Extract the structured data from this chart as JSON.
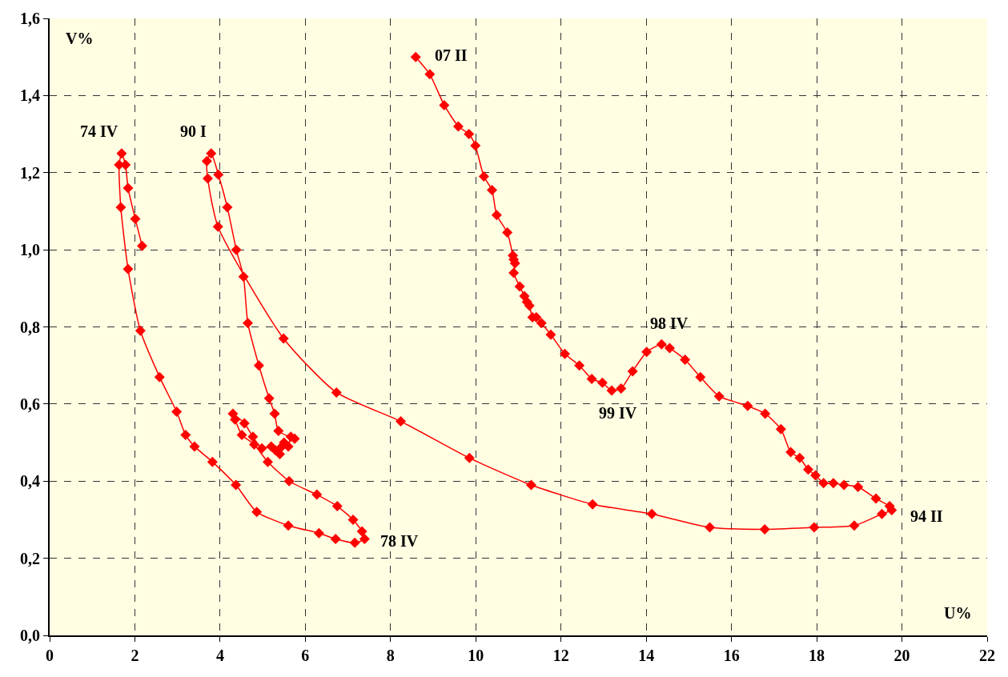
{
  "chart_data": {
    "type": "line",
    "xlabel": "U%",
    "ylabel": "V%",
    "series": [
      {
        "color": "#ff0000",
        "x": [
          2.17,
          2.01,
          1.84,
          1.78,
          1.69,
          1.63,
          1.67,
          1.84,
          2.13,
          2.58,
          2.98,
          3.19,
          3.4,
          3.82,
          4.37,
          4.86,
          5.6,
          6.32,
          6.71,
          7.16,
          7.39,
          7.33,
          7.12,
          6.75,
          6.27,
          5.62,
          5.12,
          4.8,
          4.51,
          4.35,
          4.3,
          4.57,
          4.77,
          4.98,
          5.2,
          5.3,
          5.4,
          5.45,
          5.5,
          5.6,
          5.66,
          5.75,
          5.37,
          5.28,
          5.15,
          4.91,
          4.65,
          4.55,
          4.38,
          4.17,
          3.96,
          3.79,
          3.69,
          3.71,
          3.95,
          5.49,
          6.73,
          8.24,
          9.85,
          11.3,
          12.74,
          14.13,
          15.49,
          16.78,
          17.94,
          18.88,
          19.53,
          19.76,
          19.71,
          19.39,
          18.97,
          18.64,
          18.39,
          18.16,
          17.97,
          17.8,
          17.6,
          17.39,
          17.16,
          16.79,
          16.38,
          15.71,
          15.27,
          14.91,
          14.55,
          14.36,
          14.01,
          13.68,
          13.41,
          13.19,
          12.97,
          12.72,
          12.43,
          12.09,
          11.76,
          11.54,
          11.42,
          11.33,
          11.26,
          11.2,
          11.14,
          11.03,
          10.89,
          10.92,
          10.89,
          10.87,
          10.74,
          10.49,
          10.38,
          10.19,
          9.99,
          9.84,
          9.59,
          9.26,
          8.92,
          8.59
        ],
        "values": [
          1.01,
          1.08,
          1.16,
          1.22,
          1.25,
          1.22,
          1.11,
          0.95,
          0.79,
          0.67,
          0.58,
          0.52,
          0.49,
          0.45,
          0.39,
          0.32,
          0.285,
          0.265,
          0.25,
          0.24,
          0.25,
          0.27,
          0.3,
          0.335,
          0.365,
          0.4,
          0.45,
          0.495,
          0.52,
          0.56,
          0.575,
          0.55,
          0.515,
          0.485,
          0.49,
          0.48,
          0.47,
          0.49,
          0.5,
          0.49,
          0.515,
          0.51,
          0.53,
          0.575,
          0.615,
          0.7,
          0.81,
          0.93,
          1.0,
          1.11,
          1.195,
          1.25,
          1.23,
          1.185,
          1.06,
          0.77,
          0.63,
          0.555,
          0.46,
          0.39,
          0.34,
          0.315,
          0.28,
          0.275,
          0.28,
          0.285,
          0.315,
          0.325,
          0.335,
          0.355,
          0.385,
          0.39,
          0.395,
          0.395,
          0.415,
          0.43,
          0.46,
          0.475,
          0.535,
          0.575,
          0.595,
          0.62,
          0.67,
          0.715,
          0.745,
          0.755,
          0.735,
          0.685,
          0.64,
          0.635,
          0.655,
          0.665,
          0.7,
          0.73,
          0.78,
          0.81,
          0.825,
          0.825,
          0.855,
          0.865,
          0.88,
          0.905,
          0.94,
          0.965,
          0.975,
          0.985,
          1.045,
          1.09,
          1.155,
          1.19,
          1.27,
          1.3,
          1.32,
          1.375,
          1.455,
          1.5
        ]
      }
    ],
    "annotations": [
      {
        "text": "74 IV",
        "x": 1.69,
        "y": 1.25
      },
      {
        "text": "90 I",
        "x": 3.79,
        "y": 1.25
      },
      {
        "text": "07 II",
        "x": 8.59,
        "y": 1.5
      },
      {
        "text": "98 IV",
        "x": 14.36,
        "y": 0.755
      },
      {
        "text": "99 IV",
        "x": 13.19,
        "y": 0.635
      },
      {
        "text": "94 II",
        "x": 19.76,
        "y": 0.325
      },
      {
        "text": "78 IV",
        "x": 7.39,
        "y": 0.25
      }
    ],
    "xlim": [
      0,
      22
    ],
    "ylim": [
      0,
      1.6
    ],
    "xticks": [
      0,
      2,
      4,
      6,
      8,
      10,
      12,
      14,
      16,
      18,
      20,
      22
    ],
    "yticks": [
      {
        "value": 0,
        "label": "0,0"
      },
      {
        "value": 0.2,
        "label": "0,2"
      },
      {
        "value": 0.4,
        "label": "0,4"
      },
      {
        "value": 0.6,
        "label": "0,6"
      },
      {
        "value": 0.8,
        "label": "0,8"
      },
      {
        "value": 1.0,
        "label": "1,0"
      },
      {
        "value": 1.2,
        "label": "1,2"
      },
      {
        "value": 1.4,
        "label": "1,4"
      },
      {
        "value": 1.6,
        "label": "1,6"
      }
    ],
    "grid": true,
    "marker": "diamond",
    "line_style": "solid"
  }
}
